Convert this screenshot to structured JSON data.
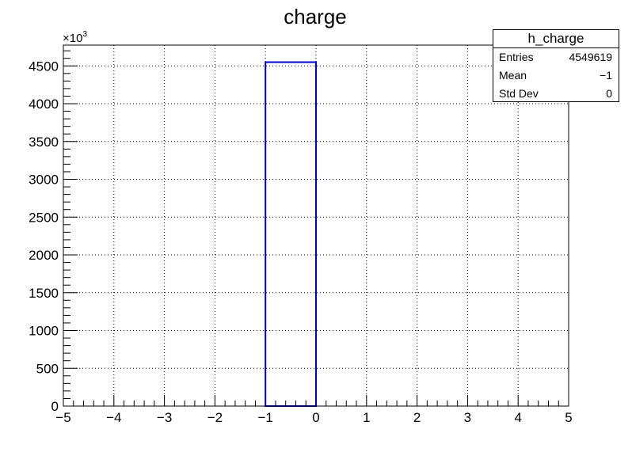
{
  "chart_data": {
    "type": "histogram",
    "title": "charge",
    "xlabel": "",
    "ylabel": "",
    "y_multiplier_label": "×10",
    "y_multiplier_exponent": "3",
    "xlim": [
      -5,
      5
    ],
    "ylim": [
      0,
      4775
    ],
    "x_ticks": [
      "−5",
      "−4",
      "−3",
      "−2",
      "−1",
      "0",
      "1",
      "2",
      "3",
      "4",
      "5"
    ],
    "y_ticks": [
      "0",
      "500",
      "1000",
      "1500",
      "2000",
      "2500",
      "3000",
      "3500",
      "4000",
      "4500"
    ],
    "grid": true,
    "bins": [
      {
        "x_low": -5,
        "x_high": -1,
        "value": 0
      },
      {
        "x_low": -1,
        "x_high": 0,
        "value": 4549.619
      },
      {
        "x_low": 0,
        "x_high": 5,
        "value": 0
      }
    ],
    "line_color": "#0000cc"
  },
  "stats_box": {
    "title": "h_charge",
    "rows": [
      {
        "label": "Entries",
        "value": "4549619"
      },
      {
        "label": "Mean",
        "value": "−1"
      },
      {
        "label": "Std Dev",
        "value": "0"
      }
    ]
  }
}
